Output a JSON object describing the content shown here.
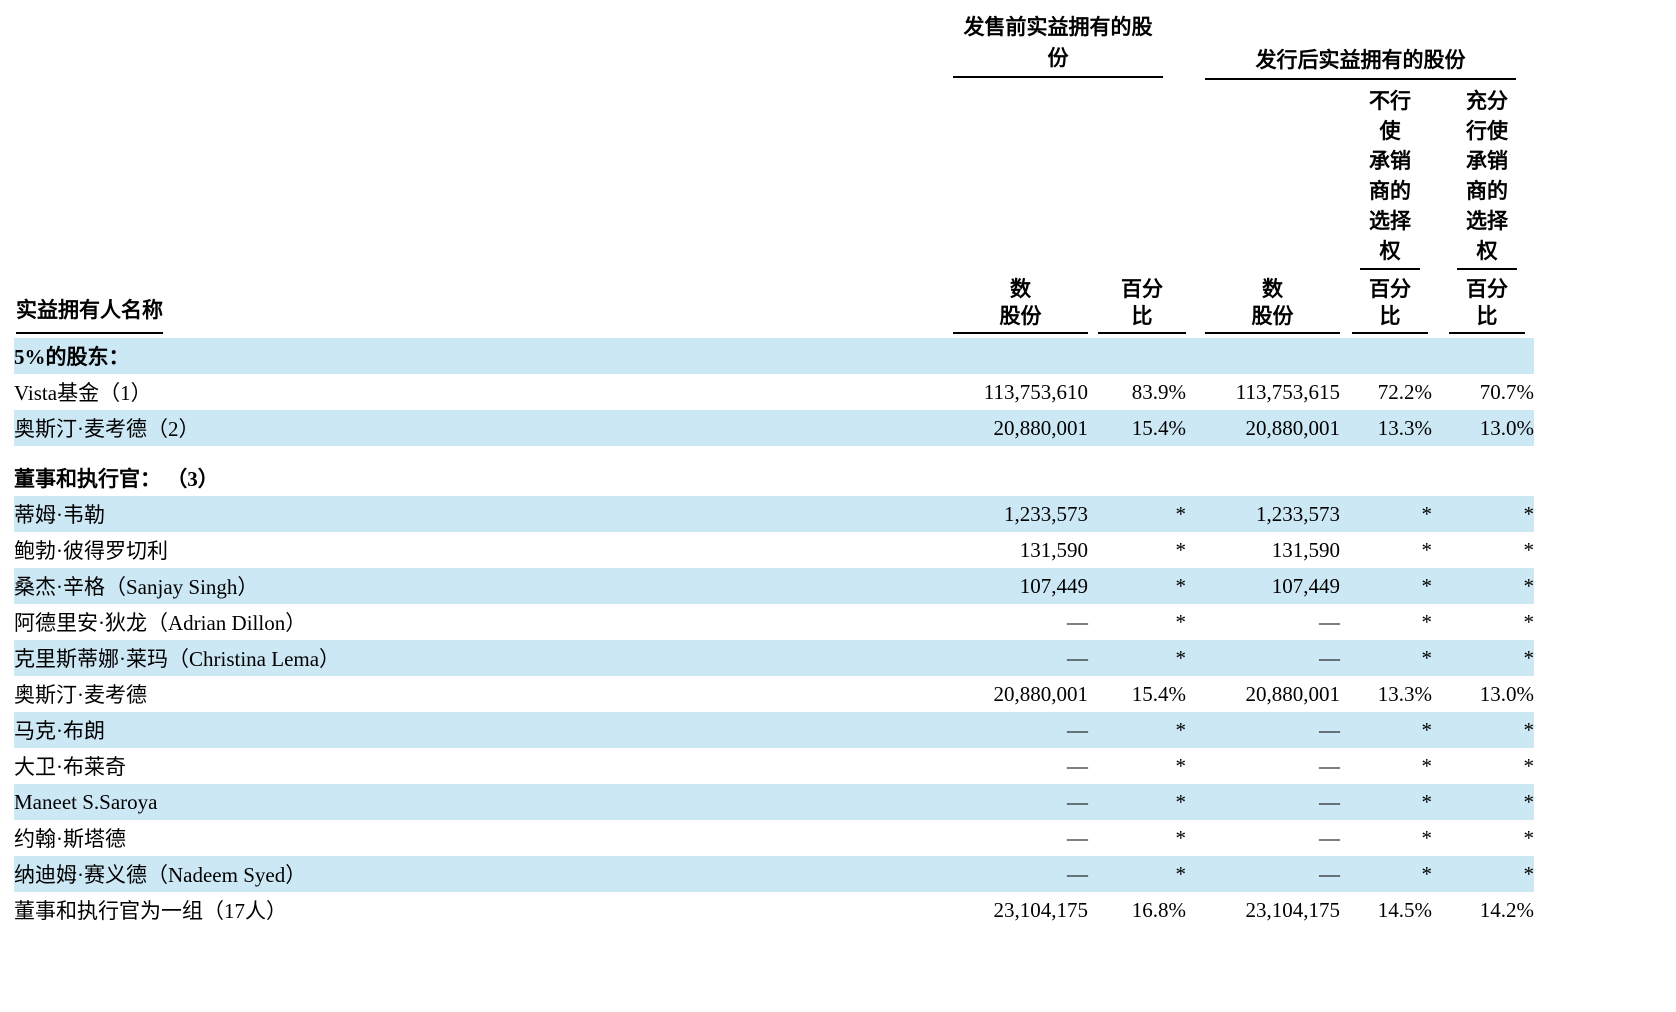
{
  "page": {
    "background": "#ffffff",
    "highlight_color": "#cde8f5",
    "text_color": "#000000"
  },
  "header": {
    "owner_name_label": "实益拥有人名称",
    "pre_offering_group": {
      "line1": "发售前实益拥有的股",
      "line2": "份"
    },
    "post_offering_group": "发行后实益拥有的股份",
    "no_exercise_option": {
      "l0": "不行",
      "l1": "使",
      "l2": "承销",
      "l3": "商的",
      "l4": "选择",
      "l5": "权"
    },
    "full_exercise_option": {
      "l0": "充分",
      "l1": "行使",
      "l2": "承销",
      "l3": "商的",
      "l4": "选择",
      "l5": "权"
    },
    "shares_label": {
      "line1": "数",
      "line2": "股份"
    },
    "percent_label": {
      "line1": "百分",
      "line2": "比"
    }
  },
  "table": {
    "rows": [
      {
        "name": "5%的股东：",
        "bold": true,
        "highlight": true,
        "values": [
          "",
          "",
          "",
          "",
          ""
        ]
      },
      {
        "name": "Vista基金（1）",
        "bold": false,
        "highlight": false,
        "values": [
          "113,753,610",
          "83.9%",
          "113,753,615",
          "72.2%",
          "70.7%"
        ]
      },
      {
        "name": "奥斯汀·麦考德（2）",
        "bold": false,
        "highlight": true,
        "values": [
          "20,880,001",
          "15.4%",
          "20,880,001",
          "13.3%",
          "13.0%"
        ]
      },
      {
        "spacer": true
      },
      {
        "name": "董事和执行官： （3）",
        "bold": true,
        "highlight": false,
        "values": [
          "",
          "",
          "",
          "",
          ""
        ]
      },
      {
        "name": "蒂姆·韦勒",
        "bold": false,
        "highlight": true,
        "values": [
          "1,233,573",
          "*",
          "1,233,573",
          "*",
          "*"
        ]
      },
      {
        "name": "鲍勃·彼得罗切利",
        "bold": false,
        "highlight": false,
        "values": [
          "131,590",
          "*",
          "131,590",
          "*",
          "*"
        ]
      },
      {
        "name": "桑杰·辛格（Sanjay Singh）",
        "bold": false,
        "highlight": true,
        "values": [
          "107,449",
          "*",
          "107,449",
          "*",
          "*"
        ]
      },
      {
        "name": "阿德里安·狄龙（Adrian Dillon）",
        "bold": false,
        "highlight": false,
        "values": [
          "—",
          "*",
          "—",
          "*",
          "*"
        ]
      },
      {
        "name": "克里斯蒂娜·莱玛（Christina Lema）",
        "bold": false,
        "highlight": true,
        "values": [
          "—",
          "*",
          "—",
          "*",
          "*"
        ]
      },
      {
        "name": "奥斯汀·麦考德",
        "bold": false,
        "highlight": false,
        "values": [
          "20,880,001",
          "15.4%",
          "20,880,001",
          "13.3%",
          "13.0%"
        ]
      },
      {
        "name": "马克·布朗",
        "bold": false,
        "highlight": true,
        "values": [
          "—",
          "*",
          "—",
          "*",
          "*"
        ]
      },
      {
        "name": "大卫·布莱奇",
        "bold": false,
        "highlight": false,
        "values": [
          "—",
          "*",
          "—",
          "*",
          "*"
        ]
      },
      {
        "name": "Maneet S.Saroya",
        "bold": false,
        "highlight": true,
        "values": [
          "—",
          "*",
          "—",
          "*",
          "*"
        ]
      },
      {
        "name": "约翰·斯塔德",
        "bold": false,
        "highlight": false,
        "values": [
          "—",
          "*",
          "—",
          "*",
          "*"
        ]
      },
      {
        "name": "纳迪姆·赛义德（Nadeem Syed）",
        "bold": false,
        "highlight": true,
        "values": [
          "—",
          "*",
          "—",
          "*",
          "*"
        ]
      },
      {
        "name": "董事和执行官为一组（17人）",
        "bold": false,
        "highlight": false,
        "values": [
          "23,104,175",
          "16.8%",
          "23,104,175",
          "14.5%",
          "14.2%"
        ]
      }
    ]
  }
}
